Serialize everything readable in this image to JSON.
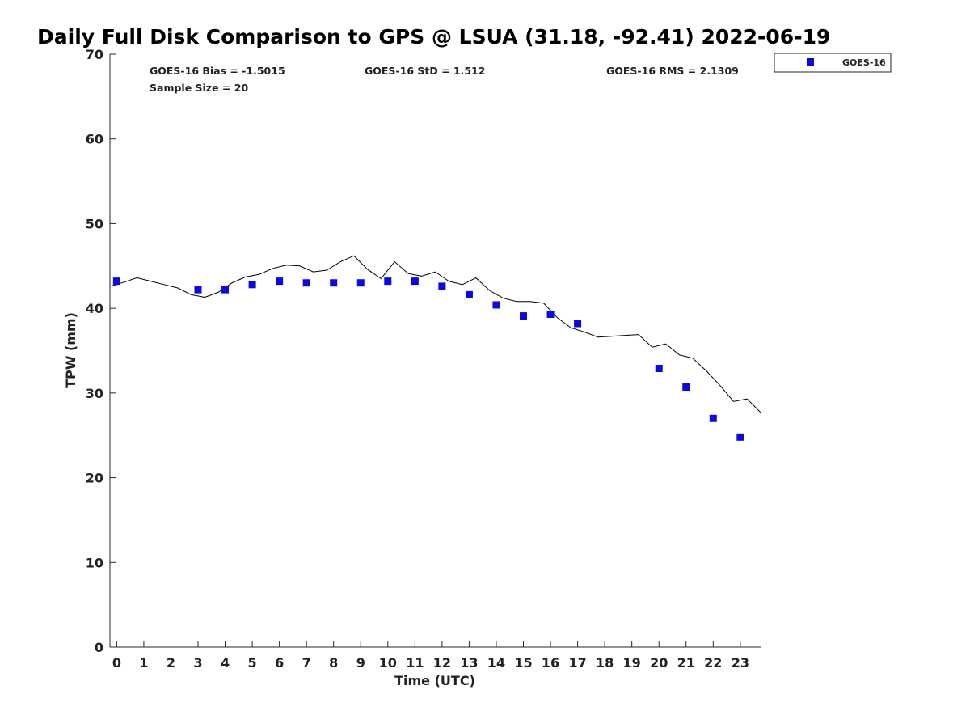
{
  "chart_data": {
    "type": "line",
    "title": "Daily Full Disk Comparison to GPS @ LSUA (31.18, -92.41) 2022-06-19",
    "xlabel": "Time (UTC)",
    "ylabel": "TPW (mm)",
    "xlim": [
      -0.25,
      23.75
    ],
    "ylim": [
      0,
      70
    ],
    "xticks": [
      0,
      1,
      2,
      3,
      4,
      5,
      6,
      7,
      8,
      9,
      10,
      11,
      12,
      13,
      14,
      15,
      16,
      17,
      18,
      19,
      20,
      21,
      22,
      23
    ],
    "yticks": [
      0,
      10,
      20,
      30,
      40,
      50,
      60,
      70
    ],
    "grid": false,
    "legend_position": "top-right, outside plot",
    "stats": {
      "bias": "GOES-16 Bias = -1.5015",
      "std": "GOES-16 StD = 1.512",
      "rms": "GOES-16 RMS = 2.1309",
      "sample": "Sample Size = 20"
    },
    "series": [
      {
        "name": "GOES-16",
        "style": "scatter",
        "marker": "square",
        "color": "#0a0ade",
        "x": [
          0,
          3,
          4,
          5,
          6,
          7,
          8,
          9,
          10,
          11,
          12,
          13,
          14,
          15,
          16,
          17,
          20,
          21,
          22,
          23
        ],
        "y": [
          43.2,
          42.2,
          42.2,
          42.8,
          43.2,
          43.0,
          43.0,
          43.0,
          43.2,
          43.2,
          42.6,
          41.6,
          40.4,
          39.1,
          39.3,
          38.2,
          32.9,
          30.7,
          27.0,
          24.8
        ]
      },
      {
        "style": "line",
        "color": "#000000",
        "x": [
          -0.25,
          0,
          0.75,
          1.25,
          1.75,
          2.25,
          2.75,
          3.25,
          3.75,
          4.25,
          4.75,
          5.25,
          5.75,
          6.25,
          6.75,
          7.25,
          7.75,
          8.25,
          8.75,
          9.25,
          9.75,
          10.25,
          10.75,
          11.25,
          11.75,
          12.25,
          12.75,
          13.25,
          13.75,
          14.25,
          14.75,
          15.25,
          15.75,
          16.25,
          16.75,
          17.25,
          17.75,
          18.25,
          18.75,
          19.25,
          19.75,
          20.25,
          20.75,
          21.25,
          21.75,
          22.25,
          22.75,
          23.25,
          23.75
        ],
        "y": [
          42.6,
          42.8,
          43.6,
          43.2,
          42.8,
          42.4,
          41.6,
          41.3,
          41.9,
          43.0,
          43.7,
          44.0,
          44.7,
          45.1,
          45.0,
          44.3,
          44.5,
          45.5,
          46.2,
          44.6,
          43.5,
          45.5,
          44.1,
          43.8,
          44.3,
          43.2,
          42.8,
          43.6,
          42.1,
          41.2,
          40.8,
          40.8,
          40.6,
          38.9,
          37.7,
          37.2,
          36.6,
          36.7,
          36.8,
          36.9,
          35.4,
          35.8,
          34.5,
          34.1,
          32.6,
          30.9,
          29.0,
          29.3,
          27.7
        ]
      }
    ]
  }
}
